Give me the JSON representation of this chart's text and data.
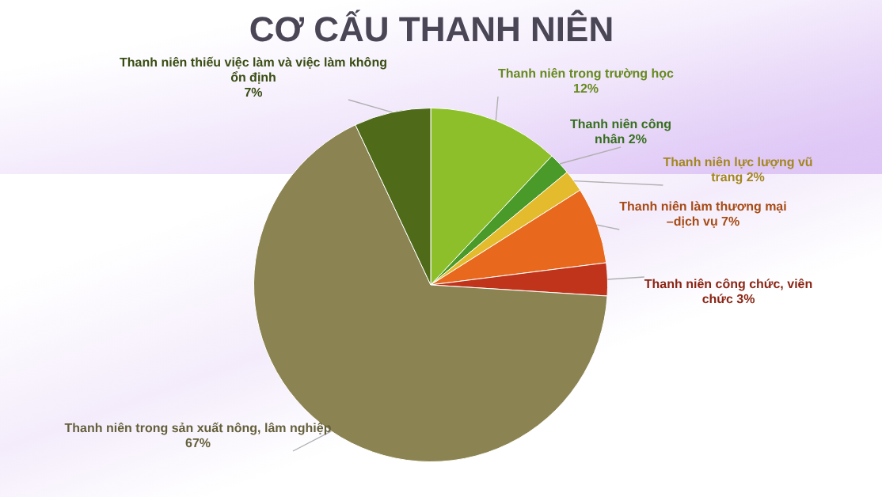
{
  "chart_data": {
    "type": "pie",
    "title": "CƠ CẤU THANH NIÊN",
    "categories": [
      "Thanh niên trong trường học",
      "Thanh niên công nhân",
      "Thanh niên lực lượng vũ trang",
      "Thanh niên làm thương mại –dịch vụ",
      "Thanh niên công chức, viên chức",
      "Thanh niên trong sản xuất nông, lâm nghiệp",
      "Thanh niên thiếu việc làm và việc làm không ổn định"
    ],
    "values": [
      12,
      2,
      2,
      7,
      3,
      67,
      7
    ],
    "value_labels": [
      "12%",
      "2%",
      "2%",
      "7%",
      "3%",
      "67%",
      "7%"
    ],
    "colors": [
      "#8dbf2a",
      "#4a9a2a",
      "#e3bb2c",
      "#e8681e",
      "#c0341c",
      "#8b8452",
      "#4f6b1a"
    ],
    "legend": false
  }
}
